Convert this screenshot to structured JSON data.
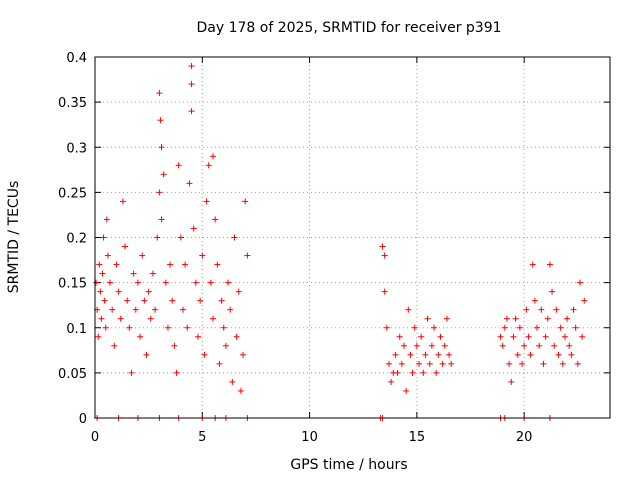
{
  "chart_data": {
    "type": "scatter",
    "title": "Day 178 of 2025, SRMTID for receiver p391",
    "xlabel": "GPS time / hours",
    "ylabel": "SRMTID / TECUs",
    "xlim": [
      0,
      24
    ],
    "ylim": [
      0,
      0.4
    ],
    "xticks": [
      0,
      5,
      10,
      15,
      20
    ],
    "xtick_labels": [
      "0",
      "5",
      "10",
      "15",
      "20"
    ],
    "yticks": [
      0,
      0.05,
      0.1,
      0.15,
      0.2,
      0.25,
      0.3,
      0.35,
      0.4
    ],
    "ytick_labels": [
      "0",
      "0.05",
      "0.1",
      "0.15",
      "0.2",
      "0.25",
      "0.3",
      "0.35",
      "0.4"
    ],
    "grid": true,
    "marker": "+",
    "color": "#ff0000",
    "series": [
      {
        "name": "SRMTID",
        "x": [
          0.05,
          0.1,
          0.15,
          0.2,
          0.25,
          0.3,
          0.35,
          0.4,
          0.45,
          0.5,
          0.55,
          0.6,
          0.7,
          0.8,
          0.9,
          1.0,
          1.1,
          1.2,
          1.3,
          1.4,
          1.5,
          1.6,
          1.7,
          1.8,
          1.9,
          2.0,
          2.1,
          2.2,
          2.3,
          2.4,
          2.5,
          2.6,
          2.7,
          2.8,
          2.9,
          3.0,
          3.0,
          3.05,
          3.1,
          3.1,
          3.2,
          3.3,
          3.4,
          3.5,
          3.6,
          3.7,
          3.8,
          3.9,
          4.0,
          4.1,
          4.2,
          4.3,
          4.4,
          4.5,
          4.5,
          4.5,
          4.6,
          4.7,
          4.8,
          4.9,
          5.0,
          5.1,
          5.2,
          5.3,
          5.4,
          5.5,
          5.5,
          5.6,
          5.7,
          5.8,
          5.9,
          6.0,
          6.1,
          6.2,
          6.3,
          6.4,
          6.5,
          6.6,
          6.7,
          6.8,
          6.9,
          7.0,
          7.1,
          13.4,
          13.5,
          13.5,
          13.6,
          13.7,
          13.8,
          13.9,
          14.0,
          14.1,
          14.2,
          14.3,
          14.4,
          14.5,
          14.6,
          14.7,
          14.8,
          14.9,
          15.0,
          15.1,
          15.2,
          15.3,
          15.4,
          15.5,
          15.6,
          15.7,
          15.8,
          15.9,
          16.0,
          16.1,
          16.2,
          16.3,
          16.4,
          16.5,
          16.6,
          18.9,
          19.0,
          19.1,
          19.2,
          19.3,
          19.4,
          19.5,
          19.6,
          19.7,
          19.8,
          19.9,
          20.0,
          20.1,
          20.2,
          20.3,
          20.4,
          20.5,
          20.6,
          20.7,
          20.8,
          20.9,
          21.0,
          21.1,
          21.2,
          21.3,
          21.4,
          21.5,
          21.6,
          21.7,
          21.8,
          21.9,
          22.0,
          22.1,
          22.2,
          22.3,
          22.4,
          22.5,
          22.6,
          22.7,
          22.8
        ],
        "y": [
          0.15,
          0.12,
          0.09,
          0.17,
          0.14,
          0.11,
          0.16,
          0.2,
          0.13,
          0.1,
          0.22,
          0.18,
          0.15,
          0.12,
          0.08,
          0.17,
          0.14,
          0.11,
          0.24,
          0.19,
          0.13,
          0.1,
          0.05,
          0.16,
          0.12,
          0.15,
          0.09,
          0.18,
          0.13,
          0.07,
          0.14,
          0.11,
          0.16,
          0.12,
          0.2,
          0.25,
          0.36,
          0.33,
          0.3,
          0.22,
          0.27,
          0.15,
          0.1,
          0.17,
          0.13,
          0.08,
          0.05,
          0.28,
          0.2,
          0.12,
          0.17,
          0.1,
          0.26,
          0.39,
          0.37,
          0.34,
          0.21,
          0.15,
          0.09,
          0.13,
          0.18,
          0.07,
          0.24,
          0.28,
          0.15,
          0.29,
          0.11,
          0.22,
          0.17,
          0.06,
          0.13,
          0.1,
          0.08,
          0.15,
          0.12,
          0.04,
          0.2,
          0.09,
          0.14,
          0.03,
          0.07,
          0.24,
          0.18,
          0.19,
          0.18,
          0.14,
          0.1,
          0.06,
          0.04,
          0.05,
          0.07,
          0.05,
          0.09,
          0.06,
          0.08,
          0.03,
          0.12,
          0.07,
          0.05,
          0.1,
          0.08,
          0.06,
          0.09,
          0.05,
          0.07,
          0.11,
          0.06,
          0.08,
          0.1,
          0.05,
          0.07,
          0.09,
          0.06,
          0.08,
          0.11,
          0.07,
          0.06,
          0.09,
          0.08,
          0.1,
          0.11,
          0.06,
          0.04,
          0.09,
          0.11,
          0.07,
          0.1,
          0.06,
          0.08,
          0.12,
          0.09,
          0.07,
          0.17,
          0.13,
          0.1,
          0.08,
          0.12,
          0.06,
          0.09,
          0.11,
          0.17,
          0.14,
          0.08,
          0.12,
          0.07,
          0.1,
          0.06,
          0.09,
          0.11,
          0.08,
          0.07,
          0.12,
          0.1,
          0.06,
          0.15,
          0.09,
          0.13
        ]
      }
    ],
    "zero_markers_x": [
      0.1,
      1.1,
      2.0,
      3.0,
      3.9,
      5.0,
      5.6,
      6.1,
      7.1,
      13.3,
      13.4,
      18.9,
      19.1,
      20.0,
      21.2
    ]
  }
}
